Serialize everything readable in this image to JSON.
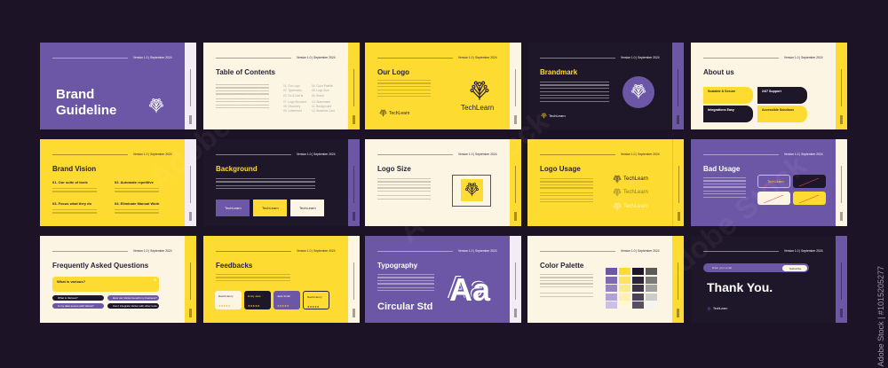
{
  "version": "Version 1.0 | September 2024",
  "brand": "TechLearn",
  "colors": {
    "background": "#1c1426",
    "purple": "#6b57a5",
    "yellow": "#fedb30",
    "cream": "#fdf5e3",
    "dark": "#1e1629"
  },
  "cover": {
    "title_line1": "Brand",
    "title_line2": "Guideline"
  },
  "toc": {
    "title": "Table of Contents",
    "items": [
      "01. Our Logo",
      "02. Typemarks",
      "03. Do & Don'ts",
      "04. Color Palette",
      "05. Logo Size",
      "06. Brand",
      "07. Logo Structure",
      "08. Discovery",
      "09. Letterhead",
      "10. Brandmark",
      "11. Background",
      "12. Business Card"
    ]
  },
  "our_logo": {
    "title": "Our Logo"
  },
  "brandmark": {
    "title": "Brandmark"
  },
  "about": {
    "title": "About us",
    "items": [
      "Scalable & Secure",
      "24/7 Support",
      "Integrations Easy",
      "Accessible Solutions"
    ]
  },
  "vision": {
    "title": "Brand Vision",
    "items": [
      "01. Our suite of tools",
      "02. Automate repetitive",
      "03. Focus what they do",
      "04. Eliminate Manual Work"
    ]
  },
  "background": {
    "title": "Background"
  },
  "logo_size": {
    "title": "Logo Size"
  },
  "logo_usage": {
    "title": "Logo Usage"
  },
  "bad_usage": {
    "title": "Bad Usage"
  },
  "faq": {
    "title": "Frequently Asked Questions",
    "open_question": "What is various?",
    "questions": [
      "What is Various?",
      "How can Varius benefit my business?",
      "Is my data secure with Varius?",
      "Can I integrate Varius with other tools"
    ]
  },
  "feedbacks": {
    "title": "Feedbacks",
    "names": [
      "David Henry",
      "Emily Jade",
      "Jade Smith",
      "David Henry"
    ],
    "rating": "★★★★★"
  },
  "typography": {
    "title": "Typography",
    "sample": "Aa",
    "font_name": "Circular Std"
  },
  "palette": {
    "title": "Color Palette",
    "swatches": [
      [
        "#6b57a5",
        "#7d6ab3",
        "#9583c2",
        "#b0a2d4",
        "#cbc0e4"
      ],
      [
        "#fedb30",
        "#fee262",
        "#fee98a",
        "#fef0b2",
        "#fff7d8"
      ],
      [
        "#1e1629",
        "#2c2438",
        "#3b3447",
        "#4a4458",
        "#565062"
      ],
      [
        "#5a5a5a",
        "#7a7a7a",
        "#a0a0a0",
        "#cccccc",
        "#f4f4f4"
      ]
    ]
  },
  "thanks": {
    "email_placeholder": "Enter your email",
    "subscribe": "Subscribe",
    "title": "Thank You."
  },
  "watermark": "Adobe Stock",
  "side_watermark": "Adobe Stock | #1015205277"
}
